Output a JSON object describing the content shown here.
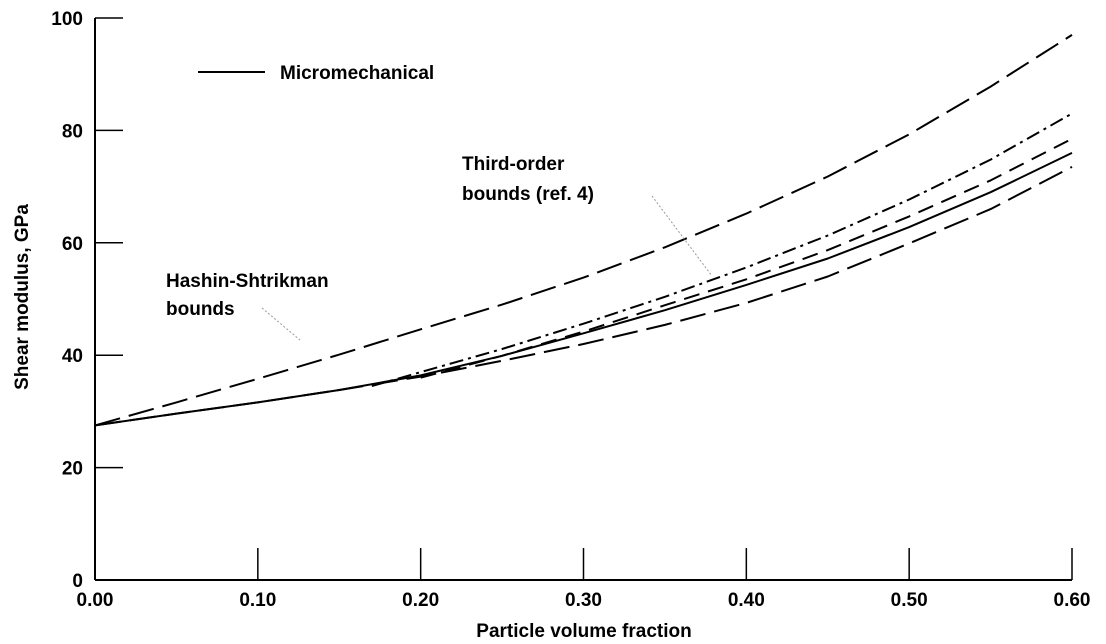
{
  "chart_data": {
    "type": "line",
    "xlabel": "Particle volume fraction",
    "ylabel": "Shear modulus, GPa",
    "xlim": [
      0,
      0.6
    ],
    "ylim": [
      0,
      100
    ],
    "x_ticks": [
      "0.00",
      "0.10",
      "0.20",
      "0.30",
      "0.40",
      "0.50",
      "0.60"
    ],
    "y_ticks": [
      "0",
      "20",
      "40",
      "60",
      "80",
      "100"
    ],
    "grid": false,
    "legend": {
      "position": "top-left",
      "label": "Micromechanical"
    },
    "annotations": {
      "hs": [
        "Hashin-Shtrikman",
        "bounds"
      ],
      "third": [
        "Third-order",
        "bounds (ref. 4)"
      ]
    },
    "series": [
      {
        "name": "Micromechanical",
        "style": "solid",
        "x": [
          0,
          0.05,
          0.1,
          0.15,
          0.2,
          0.25,
          0.3,
          0.35,
          0.4,
          0.45,
          0.5,
          0.55,
          0.6
        ],
        "y": [
          27.5,
          29.6,
          31.6,
          33.8,
          36.4,
          39.9,
          43.9,
          48.0,
          52.5,
          57.2,
          62.8,
          69.0,
          76.0
        ]
      },
      {
        "style": "long-dash",
        "x": [
          0,
          0.05,
          0.1,
          0.15,
          0.2,
          0.25,
          0.3,
          0.35,
          0.4,
          0.45,
          0.5,
          0.55,
          0.6
        ],
        "y": [
          27.5,
          31.6,
          35.8,
          40.1,
          44.6,
          49.0,
          53.8,
          59.2,
          65.2,
          71.8,
          79.3,
          87.8,
          97.0
        ]
      },
      {
        "style": "long-dash",
        "x": [
          0,
          0.05,
          0.1,
          0.15,
          0.2,
          0.25,
          0.3,
          0.35,
          0.4,
          0.45,
          0.5,
          0.55,
          0.6
        ],
        "y": [
          27.5,
          29.6,
          31.6,
          33.8,
          36.2,
          39.0,
          42.0,
          45.4,
          49.3,
          54.0,
          59.9,
          66.0,
          73.5
        ]
      },
      {
        "style": "dash-dot",
        "x": [
          0.17,
          0.2,
          0.25,
          0.3,
          0.35,
          0.4,
          0.45,
          0.5,
          0.55,
          0.6
        ],
        "y": [
          34.5,
          37.0,
          41.1,
          45.6,
          50.4,
          55.6,
          61.3,
          67.7,
          74.8,
          83.0
        ]
      },
      {
        "style": "dash",
        "x": [
          0.2,
          0.25,
          0.3,
          0.35,
          0.4,
          0.45,
          0.5,
          0.55,
          0.6
        ],
        "y": [
          36.0,
          39.9,
          44.2,
          48.9,
          53.5,
          58.7,
          64.7,
          71.1,
          78.5
        ]
      }
    ]
  }
}
